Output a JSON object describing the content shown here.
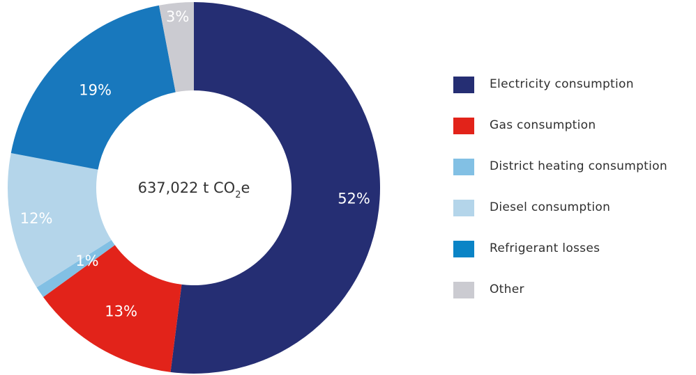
{
  "chart_data": {
    "type": "pie",
    "variant": "donut",
    "center_label": {
      "value": "637,022 t CO",
      "subscript": "2",
      "suffix": "e"
    },
    "slices": [
      {
        "name": "Electricity consumption",
        "value": 52,
        "label": "52%",
        "color": "#252e73"
      },
      {
        "name": "Gas consumption",
        "value": 13,
        "label": "13%",
        "color": "#e2231a"
      },
      {
        "name": "District heating consumption",
        "value": 1,
        "label": "1%",
        "color": "#82c0e4"
      },
      {
        "name": "Diesel consumption",
        "value": 12,
        "label": "12%",
        "color": "#b4d5ea"
      },
      {
        "name": "Refrigerant losses",
        "value": 19,
        "label": "19%",
        "color": "#1878bd"
      },
      {
        "name": "Other",
        "value": 3,
        "label": "3%",
        "color": "#cbcbd1"
      }
    ],
    "legend": {
      "position": "right",
      "items": [
        {
          "label": "Electricity consumption",
          "color": "#252e73"
        },
        {
          "label": "Gas consumption",
          "color": "#e2231a"
        },
        {
          "label": "District heating consumption",
          "color": "#82c0e4"
        },
        {
          "label": "Diesel consumption",
          "color": "#b4d5ea"
        },
        {
          "label": "Refrigerant losses",
          "color": "#0a84c6"
        },
        {
          "label": "Other",
          "color": "#cbcbd1"
        }
      ]
    }
  }
}
